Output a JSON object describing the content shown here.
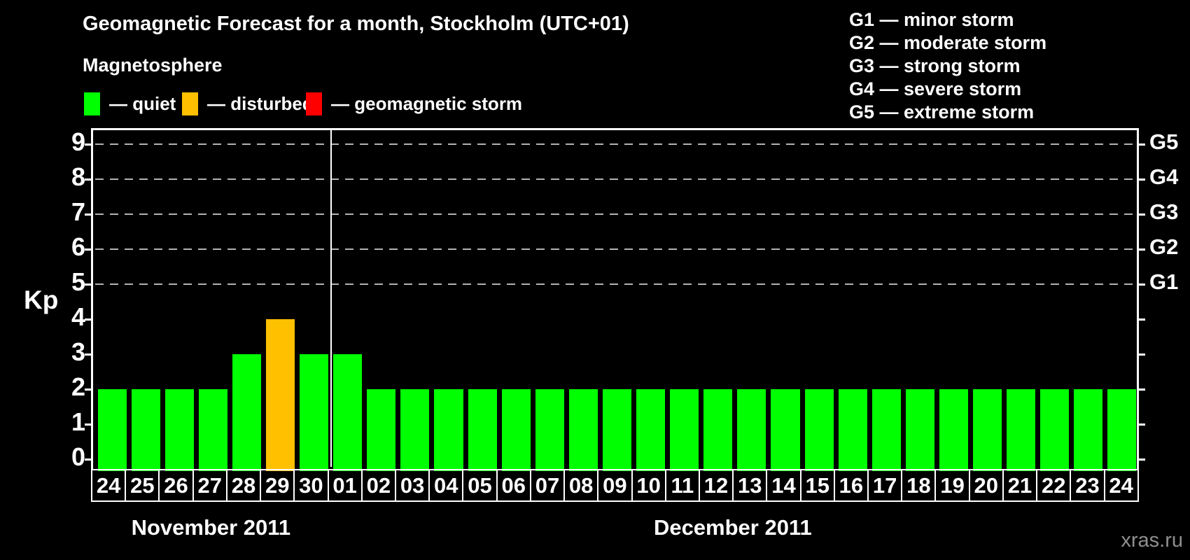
{
  "page": {
    "title": "Geomagnetic Forecast for a month, Stockholm (UTC+01)",
    "watermark": "xras.ru"
  },
  "legend": {
    "heading": "Magnetosphere",
    "items": [
      {
        "status": "quiet",
        "label": "— quiet",
        "color": "#00ff00"
      },
      {
        "status": "disturbed",
        "label": "— disturbed",
        "color": "#ffc000"
      },
      {
        "status": "storm",
        "label": "— geomagnetic storm",
        "color": "#ff0000"
      }
    ]
  },
  "storm_scale": [
    "G1 — minor storm",
    "G2 — moderate storm",
    "G3 — strong storm",
    "G4 — severe storm",
    "G5 — extreme storm"
  ],
  "chart_data": {
    "type": "bar",
    "title": "Geomagnetic Forecast for a month, Stockholm (UTC+01)",
    "xlabel": "",
    "ylabel": "Kp",
    "ylim": [
      0,
      9.4
    ],
    "yticks": [
      0,
      1,
      2,
      3,
      4,
      5,
      6,
      7,
      8,
      9
    ],
    "gridlines_at_kp": [
      5,
      6,
      7,
      8,
      9
    ],
    "grid": "dashed-horizontal",
    "legend_position": "top",
    "right_axis_labels": [
      {
        "kp": 5,
        "label": "G1"
      },
      {
        "kp": 6,
        "label": "G2"
      },
      {
        "kp": 7,
        "label": "G3"
      },
      {
        "kp": 8,
        "label": "G4"
      },
      {
        "kp": 9,
        "label": "G5"
      }
    ],
    "status_colors": {
      "quiet": "#00ff00",
      "disturbed": "#ffc000",
      "storm": "#ff0000"
    },
    "months": [
      {
        "label": "November 2011",
        "days": [
          {
            "day": "24",
            "kp": 2,
            "status": "quiet"
          },
          {
            "day": "25",
            "kp": 2,
            "status": "quiet"
          },
          {
            "day": "26",
            "kp": 2,
            "status": "quiet"
          },
          {
            "day": "27",
            "kp": 2,
            "status": "quiet"
          },
          {
            "day": "28",
            "kp": 3,
            "status": "quiet"
          },
          {
            "day": "29",
            "kp": 4,
            "status": "disturbed"
          },
          {
            "day": "30",
            "kp": 3,
            "status": "quiet"
          }
        ]
      },
      {
        "label": "December 2011",
        "days": [
          {
            "day": "01",
            "kp": 3,
            "status": "quiet"
          },
          {
            "day": "02",
            "kp": 2,
            "status": "quiet"
          },
          {
            "day": "03",
            "kp": 2,
            "status": "quiet"
          },
          {
            "day": "04",
            "kp": 2,
            "status": "quiet"
          },
          {
            "day": "05",
            "kp": 2,
            "status": "quiet"
          },
          {
            "day": "06",
            "kp": 2,
            "status": "quiet"
          },
          {
            "day": "07",
            "kp": 2,
            "status": "quiet"
          },
          {
            "day": "08",
            "kp": 2,
            "status": "quiet"
          },
          {
            "day": "09",
            "kp": 2,
            "status": "quiet"
          },
          {
            "day": "10",
            "kp": 2,
            "status": "quiet"
          },
          {
            "day": "11",
            "kp": 2,
            "status": "quiet"
          },
          {
            "day": "12",
            "kp": 2,
            "status": "quiet"
          },
          {
            "day": "13",
            "kp": 2,
            "status": "quiet"
          },
          {
            "day": "14",
            "kp": 2,
            "status": "quiet"
          },
          {
            "day": "15",
            "kp": 2,
            "status": "quiet"
          },
          {
            "day": "16",
            "kp": 2,
            "status": "quiet"
          },
          {
            "day": "17",
            "kp": 2,
            "status": "quiet"
          },
          {
            "day": "18",
            "kp": 2,
            "status": "quiet"
          },
          {
            "day": "19",
            "kp": 2,
            "status": "quiet"
          },
          {
            "day": "20",
            "kp": 2,
            "status": "quiet"
          },
          {
            "day": "21",
            "kp": 2,
            "status": "quiet"
          },
          {
            "day": "22",
            "kp": 2,
            "status": "quiet"
          },
          {
            "day": "23",
            "kp": 2,
            "status": "quiet"
          },
          {
            "day": "24",
            "kp": 2,
            "status": "quiet"
          }
        ]
      }
    ]
  }
}
